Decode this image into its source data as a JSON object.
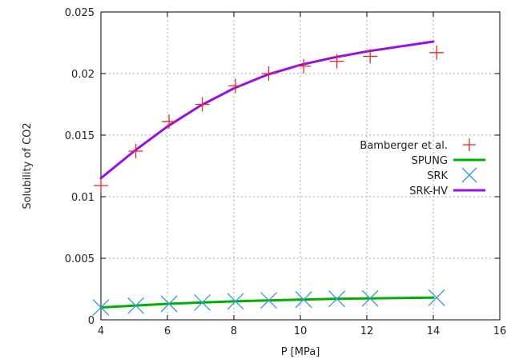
{
  "chart_data": {
    "type": "line",
    "title": "",
    "xlabel": "P [MPa]",
    "ylabel": "Solubility of CO2",
    "xlim": [
      4,
      16
    ],
    "ylim": [
      0,
      0.025
    ],
    "xticks": [
      4,
      6,
      8,
      10,
      12,
      14,
      16
    ],
    "yticks": [
      0,
      0.005,
      0.01,
      0.015,
      0.02,
      0.025
    ],
    "xtick_labels": [
      "4",
      "6",
      "8",
      "10",
      "12",
      "14",
      "16"
    ],
    "ytick_labels": [
      "0",
      "0.005",
      "0.01",
      "0.015",
      "0.02",
      "0.025"
    ],
    "grid": true,
    "legend_position": "right",
    "series": [
      {
        "name": "Bamberger et al.",
        "kind": "markers",
        "marker": "plus",
        "color": "#e8282b",
        "x": [
          4.0,
          5.05,
          6.05,
          7.05,
          8.05,
          9.05,
          10.1,
          11.1,
          12.1,
          14.1
        ],
        "y": [
          0.0109,
          0.0137,
          0.0161,
          0.0175,
          0.019,
          0.02,
          0.0206,
          0.021,
          0.0214,
          0.0217
        ]
      },
      {
        "name": "SPUNG",
        "kind": "line",
        "color": "#00b000",
        "x": [
          4.0,
          5.0,
          6.0,
          7.0,
          8.0,
          9.0,
          10.0,
          11.0,
          12.0,
          14.0
        ],
        "y": [
          0.001,
          0.00115,
          0.0013,
          0.0014,
          0.0015,
          0.00158,
          0.00164,
          0.0017,
          0.00174,
          0.0018
        ]
      },
      {
        "name": "SRK",
        "kind": "markers",
        "marker": "cross",
        "color": "#3399dd",
        "x": [
          4.0,
          5.05,
          6.05,
          7.05,
          8.05,
          9.05,
          10.1,
          11.1,
          12.1,
          14.1
        ],
        "y": [
          0.001,
          0.00115,
          0.0013,
          0.0014,
          0.0015,
          0.00158,
          0.00164,
          0.0017,
          0.00174,
          0.0018
        ]
      },
      {
        "name": "SRK-HV",
        "kind": "line",
        "color": "#9a10e0",
        "x": [
          4.0,
          5.0,
          6.0,
          7.0,
          8.0,
          9.0,
          10.0,
          11.0,
          12.0,
          14.0
        ],
        "y": [
          0.0115,
          0.0137,
          0.0157,
          0.0174,
          0.0188,
          0.0199,
          0.0207,
          0.0213,
          0.0218,
          0.0226
        ]
      }
    ]
  }
}
